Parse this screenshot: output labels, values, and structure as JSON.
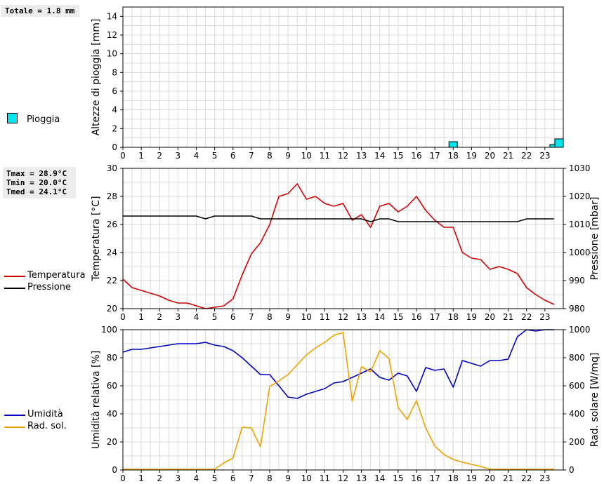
{
  "rain_summary": "Totale = 1.8 mm",
  "temp_summary": [
    "Tmax = 28.9°C",
    "Tmin = 20.0°C",
    "Tmed = 24.1°C"
  ],
  "legends": {
    "rain": [
      {
        "label": "Pioggia",
        "color": "#00e5ee"
      }
    ],
    "temp": [
      {
        "label": "Temperatura",
        "color": "#d40000"
      },
      {
        "label": "Pressione",
        "color": "#000000"
      }
    ],
    "hum": [
      {
        "label": "Umidità",
        "color": "#0000c0"
      },
      {
        "label": "Rad. sol.",
        "color": "#f0a000"
      }
    ]
  },
  "chart_data": [
    {
      "type": "bar",
      "ylabel": "Altezze di pioggia [mm]",
      "ylim": [
        0,
        15
      ],
      "yticks": [
        0,
        2,
        4,
        6,
        8,
        10,
        12,
        14
      ],
      "x_ticks": [
        0,
        1,
        2,
        3,
        4,
        5,
        6,
        7,
        8,
        9,
        10,
        11,
        12,
        13,
        14,
        15,
        16,
        17,
        18,
        19,
        20,
        21,
        22,
        23
      ],
      "xlim": [
        0,
        24
      ],
      "series": [
        {
          "name": "Pioggia",
          "color": "#00e5ee",
          "bars": [
            {
              "x": 18.0,
              "value": 0.6
            },
            {
              "x": 23.5,
              "value": 0.3
            },
            {
              "x": 24.0,
              "value": 0.9
            }
          ]
        }
      ],
      "grid": true
    },
    {
      "type": "line",
      "ylabel": "Temperatura [°C]",
      "ylabel_right": "Pressione [mbar]",
      "ylim": [
        20,
        30
      ],
      "yticks": [
        20,
        22,
        24,
        26,
        28,
        30
      ],
      "ylim_right": [
        980,
        1030
      ],
      "yticks_right": [
        980,
        990,
        1000,
        1010,
        1020,
        1030
      ],
      "x_ticks": [
        0,
        1,
        2,
        3,
        4,
        5,
        6,
        7,
        8,
        9,
        10,
        11,
        12,
        13,
        14,
        15,
        16,
        17,
        18,
        19,
        20,
        21,
        22,
        23
      ],
      "xlim": [
        0,
        24
      ],
      "grid": true,
      "series": [
        {
          "name": "Temperatura",
          "color": "#d40000",
          "axis": "left",
          "x": [
            0,
            0.5,
            1,
            1.5,
            2,
            2.5,
            3,
            3.5,
            4,
            4.5,
            5,
            5.5,
            6,
            6.5,
            7,
            7.5,
            8,
            8.5,
            9,
            9.5,
            10,
            10.5,
            11,
            11.5,
            12,
            12.5,
            13,
            13.5,
            14,
            14.5,
            15,
            15.5,
            16,
            16.5,
            17,
            17.5,
            18,
            18.5,
            19,
            19.5,
            20,
            20.5,
            21,
            21.5,
            22,
            22.5,
            23,
            23.5
          ],
          "y": [
            22.1,
            21.5,
            21.3,
            21.1,
            20.9,
            20.6,
            20.4,
            20.4,
            20.2,
            20.0,
            20.1,
            20.2,
            20.7,
            22.4,
            23.9,
            24.7,
            26.0,
            28.0,
            28.2,
            28.9,
            27.8,
            28.0,
            27.5,
            27.3,
            27.5,
            26.3,
            26.7,
            25.8,
            27.3,
            27.5,
            26.9,
            27.3,
            28.0,
            27.0,
            26.3,
            25.8,
            25.8,
            24.0,
            23.6,
            23.5,
            22.8,
            23.0,
            22.8,
            22.5,
            21.5,
            21.0,
            20.6,
            20.3
          ]
        },
        {
          "name": "Pressione",
          "color": "#000000",
          "axis": "right",
          "x": [
            0,
            0.5,
            1,
            1.5,
            2,
            2.5,
            3,
            3.5,
            4,
            4.5,
            5,
            5.5,
            6,
            6.5,
            7,
            7.5,
            8,
            8.5,
            9,
            9.5,
            10,
            10.5,
            11,
            11.5,
            12,
            12.5,
            13,
            13.5,
            14,
            14.5,
            15,
            15.5,
            16,
            16.5,
            17,
            17.5,
            18,
            18.5,
            19,
            19.5,
            20,
            20.5,
            21,
            21.5,
            22,
            22.5,
            23,
            23.5
          ],
          "y": [
            1013,
            1013,
            1013,
            1013,
            1013,
            1013,
            1013,
            1013,
            1013,
            1012,
            1013,
            1013,
            1013,
            1013,
            1013,
            1012,
            1012,
            1012,
            1012,
            1012,
            1012,
            1012,
            1012,
            1012,
            1012,
            1012,
            1012,
            1011,
            1012,
            1012,
            1011,
            1011,
            1011,
            1011,
            1011,
            1011,
            1011,
            1011,
            1011,
            1011,
            1011,
            1011,
            1011,
            1011,
            1012,
            1012,
            1012,
            1012
          ]
        }
      ]
    },
    {
      "type": "line",
      "ylabel": "Umidità relativa [%]",
      "ylabel_right": "Rad. solare [W/mq]",
      "ylim": [
        0,
        100
      ],
      "yticks": [
        0,
        20,
        40,
        60,
        80,
        100
      ],
      "ylim_right": [
        0,
        1000
      ],
      "yticks_right": [
        0,
        200,
        400,
        600,
        800,
        1000
      ],
      "x_ticks": [
        0,
        1,
        2,
        3,
        4,
        5,
        6,
        7,
        8,
        9,
        10,
        11,
        12,
        13,
        14,
        15,
        16,
        17,
        18,
        19,
        20,
        21,
        22,
        23
      ],
      "xlim": [
        0,
        24
      ],
      "grid": true,
      "series": [
        {
          "name": "Umidità",
          "color": "#0000c0",
          "axis": "left",
          "x": [
            0,
            0.5,
            1,
            1.5,
            2,
            2.5,
            3,
            3.5,
            4,
            4.5,
            5,
            5.5,
            6,
            6.5,
            7,
            7.5,
            8,
            8.5,
            9,
            9.5,
            10,
            10.5,
            11,
            11.5,
            12,
            12.5,
            13,
            13.5,
            14,
            14.5,
            15,
            15.5,
            16,
            16.5,
            17,
            17.5,
            18,
            18.5,
            19,
            19.5,
            20,
            20.5,
            21,
            21.5,
            22,
            22.5,
            23,
            23.5
          ],
          "y": [
            84,
            86,
            86,
            87,
            88,
            89,
            90,
            90,
            90,
            91,
            89,
            88,
            85,
            80,
            74,
            68,
            68,
            60,
            52,
            51,
            54,
            56,
            58,
            62,
            63,
            66,
            69,
            72,
            66,
            64,
            69,
            67,
            56,
            73,
            71,
            72,
            59,
            78,
            76,
            74,
            78,
            78,
            79,
            95,
            100,
            99,
            100,
            100
          ]
        },
        {
          "name": "Rad. sol.",
          "color": "#f0a000",
          "axis": "right",
          "x": [
            0,
            0.5,
            1,
            1.5,
            2,
            2.5,
            3,
            3.5,
            4,
            4.5,
            5,
            5.5,
            6,
            6.5,
            7,
            7.5,
            8,
            8.5,
            9,
            9.5,
            10,
            10.5,
            11,
            11.5,
            12,
            12.5,
            13,
            13.5,
            14,
            14.5,
            15,
            15.5,
            16,
            16.5,
            17,
            17.5,
            18,
            18.5,
            19,
            19.5,
            20,
            20.5,
            21,
            21.5,
            22,
            22.5,
            23,
            23.5
          ],
          "y": [
            5,
            5,
            5,
            5,
            5,
            5,
            5,
            5,
            5,
            5,
            5,
            50,
            85,
            305,
            300,
            165,
            595,
            635,
            680,
            750,
            820,
            870,
            910,
            960,
            980,
            490,
            735,
            700,
            850,
            795,
            445,
            360,
            495,
            300,
            170,
            110,
            75,
            55,
            40,
            25,
            5,
            5,
            5,
            5,
            5,
            5,
            5,
            5
          ]
        }
      ]
    }
  ]
}
